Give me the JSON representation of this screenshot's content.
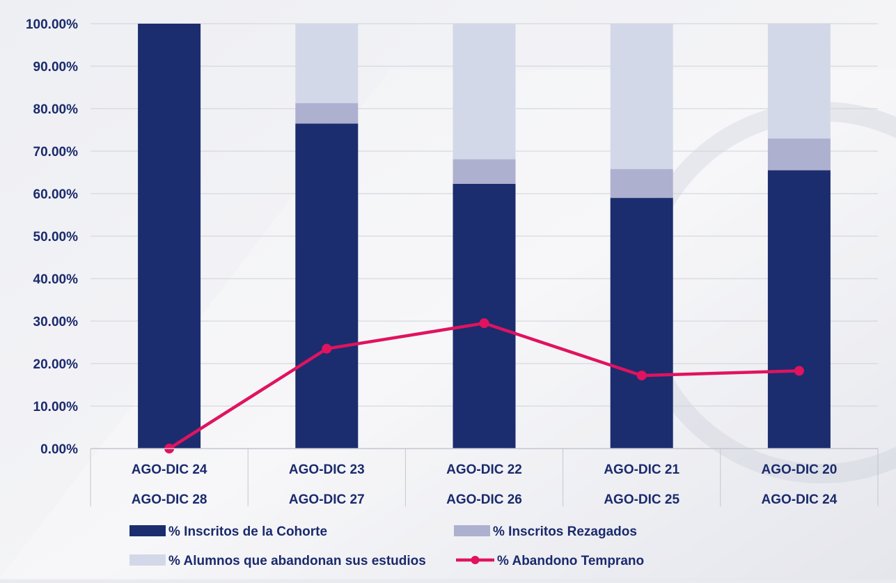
{
  "chart_data": {
    "type": "bar",
    "stacked": true,
    "categories": [
      [
        "AGO-DIC 24",
        "AGO-DIC 28"
      ],
      [
        "AGO-DIC 23",
        "AGO-DIC 27"
      ],
      [
        "AGO-DIC 22",
        "AGO-DIC 26"
      ],
      [
        "AGO-DIC 21",
        "AGO-DIC 25"
      ],
      [
        "AGO-DIC 20",
        "AGO-DIC 24"
      ]
    ],
    "series": [
      {
        "name": "% Inscritos de la Cohorte",
        "kind": "bar",
        "color": "#1b2d6e",
        "values": [
          100.0,
          76.5,
          62.3,
          59.0,
          65.5
        ]
      },
      {
        "name": "% Inscritos Rezagados",
        "kind": "bar",
        "color": "#aeb0d0",
        "values": [
          0.0,
          4.8,
          5.8,
          6.8,
          7.5
        ]
      },
      {
        "name": "% Alumnos que abandonan sus estudios",
        "kind": "bar",
        "color": "#d3d8e8",
        "values": [
          0.0,
          18.7,
          31.9,
          34.2,
          27.0
        ]
      },
      {
        "name": "% Abandono Temprano",
        "kind": "line",
        "color": "#e0135f",
        "values": [
          0.0,
          23.5,
          29.5,
          17.2,
          18.3
        ]
      }
    ],
    "yticks": [
      "0.00%",
      "10.00%",
      "20.00%",
      "30.00%",
      "40.00%",
      "50.00%",
      "60.00%",
      "70.00%",
      "80.00%",
      "90.00%",
      "100.00%"
    ],
    "ylim": [
      0,
      100
    ],
    "grid": true,
    "legend_position": "bottom"
  }
}
